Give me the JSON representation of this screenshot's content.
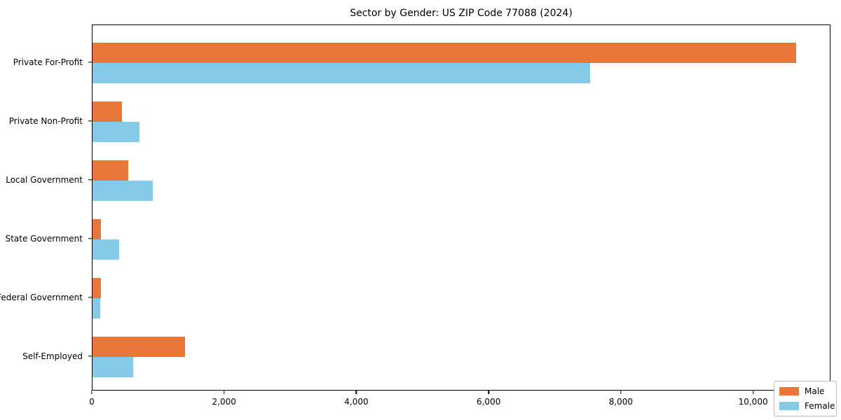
{
  "chart_data": {
    "type": "bar",
    "orientation": "horizontal",
    "title": "Sector by Gender: US ZIP Code 77088 (2024)",
    "categories": [
      "Private For-Profit",
      "Private Non-Profit",
      "Local Government",
      "State Government",
      "Federal Government",
      "Self-Employed"
    ],
    "series": [
      {
        "name": "Male",
        "color": "#e87839",
        "values": [
          10640,
          440,
          535,
          125,
          130,
          1395
        ]
      },
      {
        "name": "Female",
        "color": "#85cbe8",
        "values": [
          7525,
          705,
          910,
          405,
          113,
          615
        ]
      }
    ],
    "xlim": [
      0,
      11170
    ],
    "x_ticks": [
      {
        "value": 0,
        "label": "0"
      },
      {
        "value": 2000,
        "label": "2,000"
      },
      {
        "value": 4000,
        "label": "4,000"
      },
      {
        "value": 6000,
        "label": "6,000"
      },
      {
        "value": 8000,
        "label": "8,000"
      },
      {
        "value": 10000,
        "label": "10,000"
      }
    ],
    "xlabel": "",
    "ylabel": "",
    "grid": false,
    "legend_position": "lower right",
    "spine_color": "#000000"
  }
}
